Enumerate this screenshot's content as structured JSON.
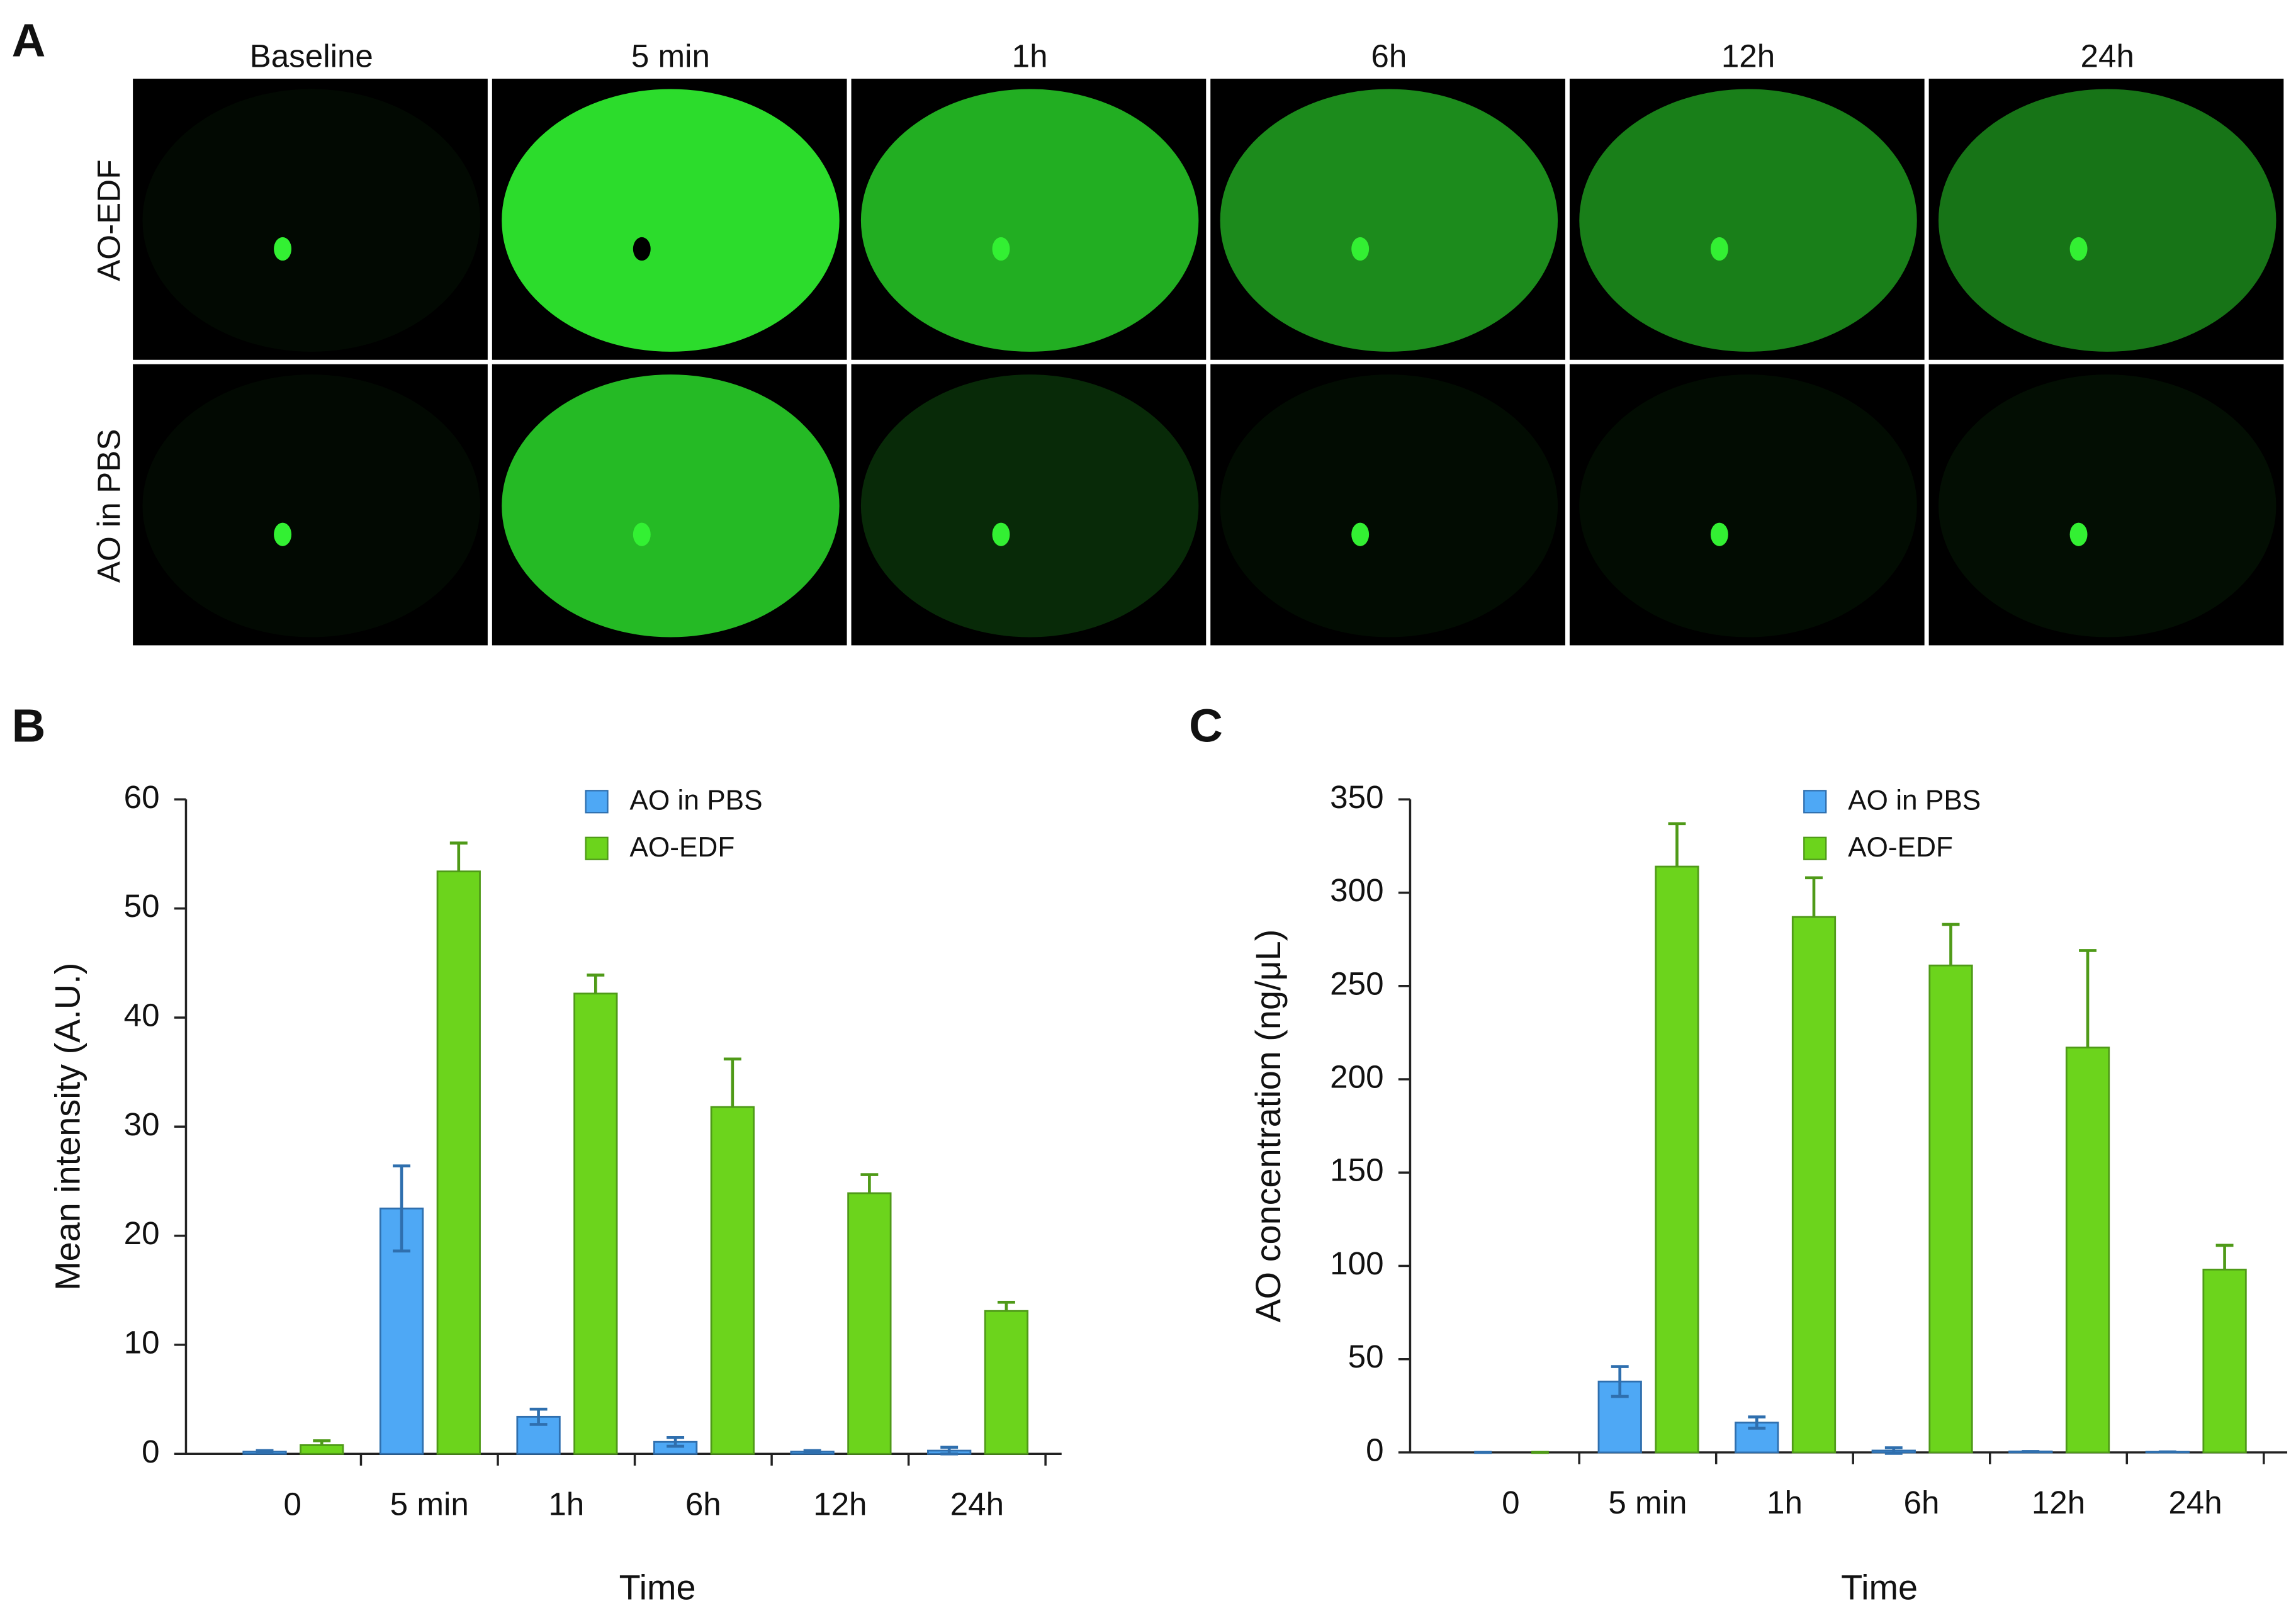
{
  "panel_a": {
    "label": "A",
    "columns": [
      "Baseline",
      "5 min",
      "1h",
      "6h",
      "12h",
      "24h"
    ],
    "rows": [
      "AO-EDF",
      "AO in PBS"
    ]
  },
  "chart_data": [
    {
      "type": "bar",
      "label": "B",
      "x_label": "Time",
      "y_label": "Mean intensity (A.U.)",
      "categories": [
        "0",
        "5 min",
        "1h",
        "6h",
        "12h",
        "24h"
      ],
      "series": [
        {
          "name": "AO in PBS",
          "color": "#4ea8f5",
          "values": [
            0.2,
            22.5,
            3.4,
            1.1,
            0.2,
            0.3
          ],
          "errors": [
            0.1,
            3.9,
            0.7,
            0.4,
            0.1,
            0.3
          ]
        },
        {
          "name": "AO-EDF",
          "color": "#6cd41c",
          "values": [
            0.8,
            53.4,
            42.2,
            31.8,
            23.9,
            13.1
          ],
          "errors": [
            0.4,
            2.6,
            1.7,
            4.4,
            1.7,
            0.8
          ]
        }
      ],
      "ylim": [
        0,
        60
      ],
      "yticks": [
        0,
        10,
        20,
        30,
        40,
        50,
        60
      ]
    },
    {
      "type": "bar",
      "label": "C",
      "x_label": "Time",
      "y_label": "AO concentration (ng/μL)",
      "categories": [
        "0",
        "5 min",
        "1h",
        "6h",
        "12h",
        "24h"
      ],
      "series": [
        {
          "name": "AO in PBS",
          "color": "#4ea8f5",
          "values": [
            0,
            38,
            16,
            1,
            0.5,
            0.3
          ],
          "errors": [
            0,
            8,
            3,
            1.5,
            0,
            0
          ]
        },
        {
          "name": "AO-EDF",
          "color": "#6cd41c",
          "values": [
            0,
            314,
            287,
            261,
            217,
            98
          ],
          "errors": [
            0,
            23,
            21,
            22,
            52,
            13
          ]
        }
      ],
      "ylim": [
        0,
        350
      ],
      "yticks": [
        0,
        50,
        100,
        150,
        200,
        250,
        300,
        350
      ]
    }
  ]
}
